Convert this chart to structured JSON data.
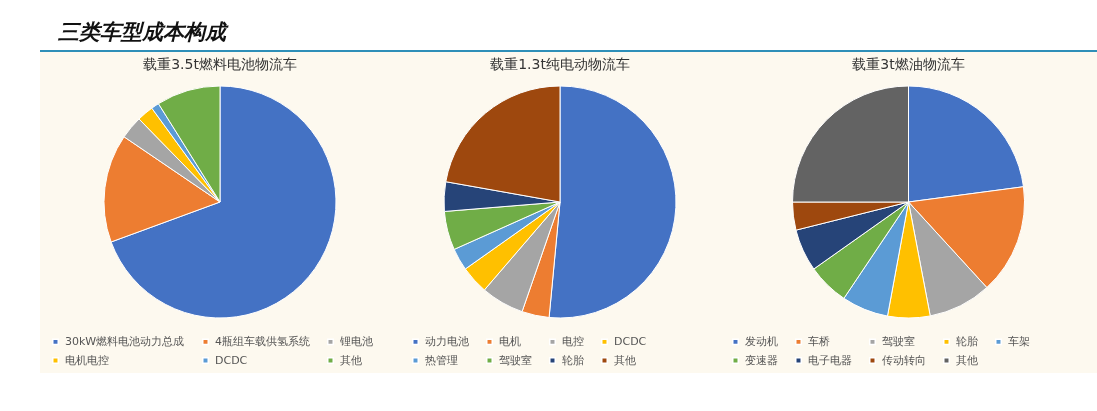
{
  "chart_data": [
    {
      "type": "other",
      "title": "三类车型成本构成"
    },
    {
      "type": "pie",
      "title": "载重3.5t燃料电池物流车",
      "categories": [
        "30kW燃料电池动力总成",
        "4瓶组车载供氢系统",
        "锂电池",
        "电机电控",
        "DCDC",
        "其他"
      ],
      "values": [
        69.4,
        15.1,
        3.2,
        2.3,
        1.1,
        8.9
      ],
      "colors": [
        "#4472c4",
        "#ed7d31",
        "#a5a5a5",
        "#ffc000",
        "#5b9bd5",
        "#70ad47"
      ],
      "legend": "bottom"
    },
    {
      "type": "pie",
      "title": "载重1.3t纯电动物流车",
      "categories": [
        "动力电池",
        "电机",
        "电控",
        "DCDC",
        "热管理",
        "驾驶室",
        "轮胎",
        "其他"
      ],
      "values": [
        51.5,
        3.8,
        6.0,
        3.9,
        3.1,
        5.4,
        4.1,
        22.2
      ],
      "colors": [
        "#4472c4",
        "#ed7d31",
        "#a5a5a5",
        "#ffc000",
        "#5b9bd5",
        "#70ad47",
        "#264478",
        "#9e480e"
      ],
      "legend": "bottom"
    },
    {
      "type": "pie",
      "title": "载重3t燃油物流车",
      "categories": [
        "发动机",
        "车桥",
        "驾驶室",
        "轮胎",
        "车架",
        "变速器",
        "电子电器",
        "传动转向",
        "其他"
      ],
      "values": [
        22.9,
        15.3,
        8.8,
        5.9,
        6.5,
        5.8,
        5.9,
        3.9,
        25.0
      ],
      "colors": [
        "#4472c4",
        "#ed7d31",
        "#a5a5a5",
        "#ffc000",
        "#5b9bd5",
        "#70ad47",
        "#264478",
        "#9e480e",
        "#636363"
      ],
      "legend": "bottom"
    }
  ]
}
